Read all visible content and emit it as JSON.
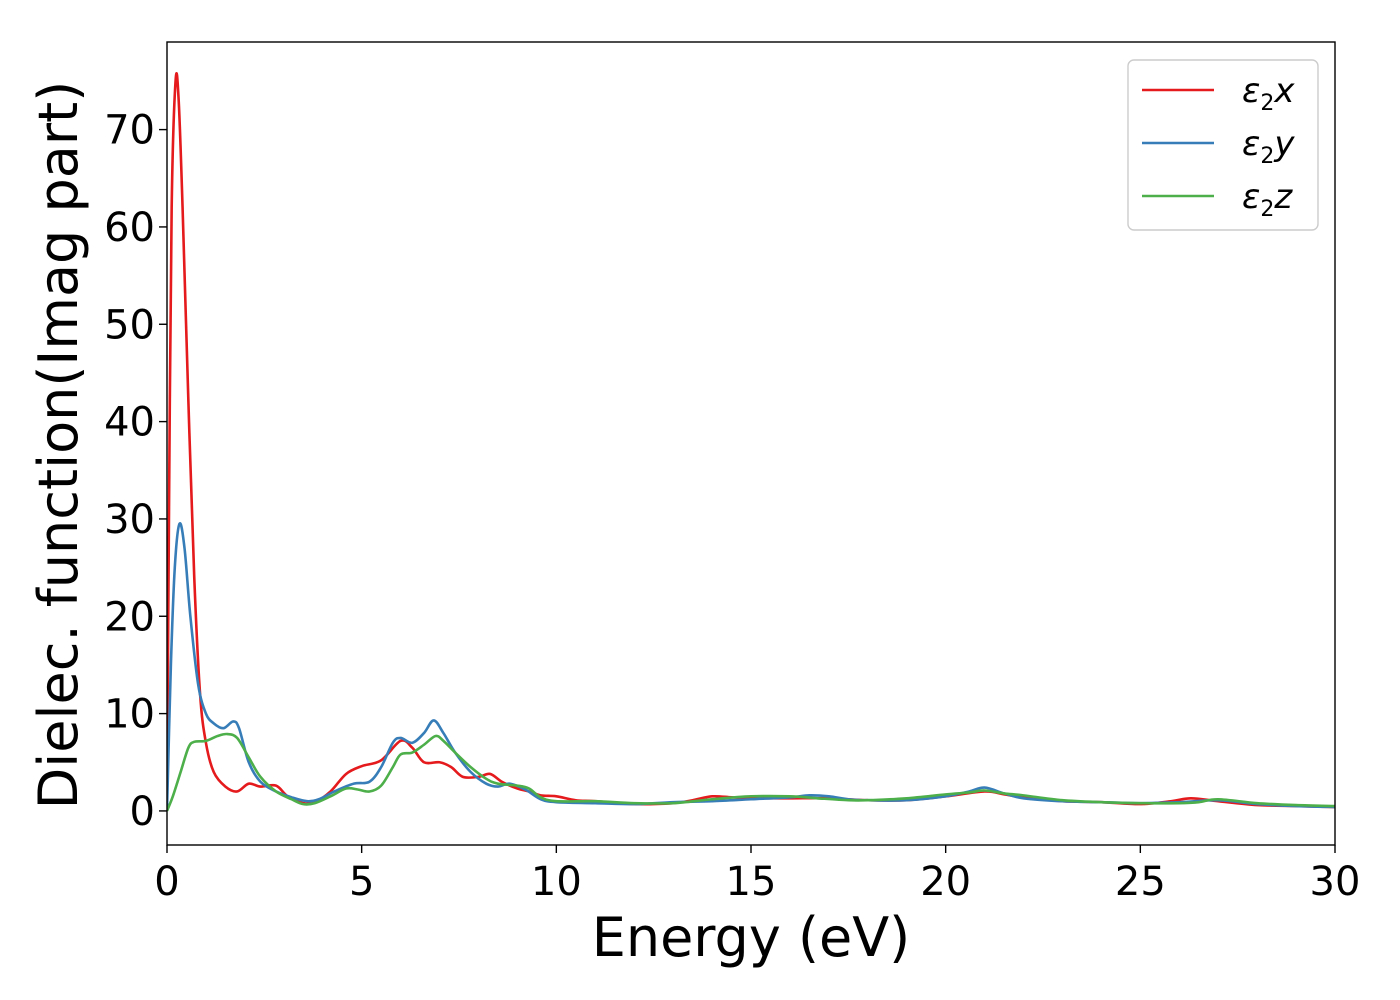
{
  "chart_data": {
    "type": "line",
    "xlabel": "Energy (eV)",
    "ylabel": "Dielec. function(Imag part)",
    "xlim": [
      0,
      30
    ],
    "ylim": [
      -3.5,
      79
    ],
    "xticks": [
      0,
      5,
      10,
      15,
      20,
      25,
      30
    ],
    "yticks": [
      0,
      10,
      20,
      30,
      40,
      50,
      60,
      70
    ],
    "grid": false,
    "legend_position": "top-right",
    "series": [
      {
        "name": "ε2x",
        "legend_symbol": "ε",
        "legend_sub": "2",
        "legend_var": "x",
        "color": "#e41a1c",
        "points": [
          [
            0,
            0
          ],
          [
            0.05,
            30
          ],
          [
            0.12,
            62
          ],
          [
            0.22,
            75
          ],
          [
            0.3,
            73
          ],
          [
            0.4,
            62
          ],
          [
            0.55,
            42
          ],
          [
            0.7,
            24
          ],
          [
            0.85,
            12
          ],
          [
            1.0,
            7
          ],
          [
            1.2,
            4
          ],
          [
            1.5,
            2.5
          ],
          [
            1.8,
            2.0
          ],
          [
            2.1,
            2.8
          ],
          [
            2.4,
            2.5
          ],
          [
            2.8,
            2.6
          ],
          [
            3.1,
            1.5
          ],
          [
            3.5,
            0.8
          ],
          [
            3.8,
            0.9
          ],
          [
            4.2,
            2.0
          ],
          [
            4.6,
            3.8
          ],
          [
            5.0,
            4.6
          ],
          [
            5.5,
            5.2
          ],
          [
            6.0,
            7.2
          ],
          [
            6.3,
            6.5
          ],
          [
            6.6,
            5.0
          ],
          [
            7.0,
            5.0
          ],
          [
            7.3,
            4.5
          ],
          [
            7.6,
            3.5
          ],
          [
            8.0,
            3.5
          ],
          [
            8.3,
            3.8
          ],
          [
            8.6,
            3.0
          ],
          [
            9.0,
            2.3
          ],
          [
            9.3,
            2.0
          ],
          [
            9.6,
            1.6
          ],
          [
            10.0,
            1.5
          ],
          [
            10.5,
            1.1
          ],
          [
            11.0,
            1.0
          ],
          [
            12.0,
            0.7
          ],
          [
            13.0,
            0.8
          ],
          [
            13.5,
            1.1
          ],
          [
            14.0,
            1.5
          ],
          [
            14.5,
            1.4
          ],
          [
            15.0,
            1.3
          ],
          [
            16.0,
            1.3
          ],
          [
            17.0,
            1.3
          ],
          [
            18.0,
            1.1
          ],
          [
            19.0,
            1.1
          ],
          [
            20.0,
            1.5
          ],
          [
            21.0,
            2.0
          ],
          [
            21.5,
            1.7
          ],
          [
            22.0,
            1.4
          ],
          [
            23.0,
            1.0
          ],
          [
            24.0,
            0.9
          ],
          [
            25.0,
            0.7
          ],
          [
            25.8,
            1.0
          ],
          [
            26.3,
            1.3
          ],
          [
            27.0,
            1.0
          ],
          [
            28.0,
            0.6
          ],
          [
            29.0,
            0.5
          ],
          [
            30.0,
            0.4
          ]
        ]
      },
      {
        "name": "ε2y",
        "legend_symbol": "ε",
        "legend_sub": "2",
        "legend_var": "y",
        "color": "#377eb8",
        "points": [
          [
            0,
            0
          ],
          [
            0.1,
            15
          ],
          [
            0.2,
            25
          ],
          [
            0.32,
            29.5
          ],
          [
            0.45,
            27
          ],
          [
            0.6,
            20
          ],
          [
            0.8,
            13
          ],
          [
            1.0,
            10
          ],
          [
            1.2,
            9
          ],
          [
            1.45,
            8.5
          ],
          [
            1.7,
            9.2
          ],
          [
            1.85,
            8.5
          ],
          [
            2.1,
            5
          ],
          [
            2.4,
            3
          ],
          [
            2.8,
            2.0
          ],
          [
            3.2,
            1.4
          ],
          [
            3.6,
            1.0
          ],
          [
            3.9,
            1.2
          ],
          [
            4.3,
            2.0
          ],
          [
            4.8,
            2.8
          ],
          [
            5.2,
            3.0
          ],
          [
            5.5,
            4.5
          ],
          [
            5.8,
            7.0
          ],
          [
            6.0,
            7.5
          ],
          [
            6.3,
            7.0
          ],
          [
            6.6,
            8.0
          ],
          [
            6.85,
            9.3
          ],
          [
            7.1,
            8.0
          ],
          [
            7.4,
            6.0
          ],
          [
            7.8,
            4.0
          ],
          [
            8.2,
            2.8
          ],
          [
            8.5,
            2.5
          ],
          [
            8.8,
            2.8
          ],
          [
            9.2,
            2.2
          ],
          [
            9.6,
            1.2
          ],
          [
            10.0,
            0.9
          ],
          [
            11.0,
            0.8
          ],
          [
            12.0,
            0.7
          ],
          [
            13.0,
            0.9
          ],
          [
            14.0,
            1.0
          ],
          [
            15.0,
            1.2
          ],
          [
            16.0,
            1.4
          ],
          [
            16.5,
            1.6
          ],
          [
            17.0,
            1.5
          ],
          [
            17.5,
            1.2
          ],
          [
            18.0,
            1.1
          ],
          [
            19.0,
            1.1
          ],
          [
            20.0,
            1.5
          ],
          [
            20.6,
            2.0
          ],
          [
            21.0,
            2.4
          ],
          [
            21.5,
            1.8
          ],
          [
            22.0,
            1.3
          ],
          [
            23.0,
            1.0
          ],
          [
            24.0,
            0.9
          ],
          [
            25.0,
            0.8
          ],
          [
            26.0,
            0.9
          ],
          [
            27.0,
            1.1
          ],
          [
            28.0,
            0.7
          ],
          [
            29.0,
            0.5
          ],
          [
            30.0,
            0.4
          ]
        ]
      },
      {
        "name": "ε2z",
        "legend_symbol": "ε",
        "legend_sub": "2",
        "legend_var": "z",
        "color": "#4daf4a",
        "points": [
          [
            0,
            0
          ],
          [
            0.15,
            1.5
          ],
          [
            0.35,
            4
          ],
          [
            0.55,
            6.5
          ],
          [
            0.7,
            7.1
          ],
          [
            1.0,
            7.2
          ],
          [
            1.3,
            7.7
          ],
          [
            1.55,
            7.9
          ],
          [
            1.8,
            7.5
          ],
          [
            2.1,
            5.5
          ],
          [
            2.4,
            3.5
          ],
          [
            2.8,
            2.0
          ],
          [
            3.2,
            1.2
          ],
          [
            3.5,
            0.7
          ],
          [
            3.8,
            0.8
          ],
          [
            4.2,
            1.5
          ],
          [
            4.6,
            2.3
          ],
          [
            4.9,
            2.2
          ],
          [
            5.2,
            2.0
          ],
          [
            5.5,
            2.6
          ],
          [
            5.8,
            4.5
          ],
          [
            6.0,
            5.8
          ],
          [
            6.3,
            6.0
          ],
          [
            6.6,
            6.8
          ],
          [
            6.9,
            7.7
          ],
          [
            7.1,
            7.2
          ],
          [
            7.4,
            6.0
          ],
          [
            7.8,
            4.5
          ],
          [
            8.2,
            3.3
          ],
          [
            8.5,
            2.8
          ],
          [
            9.0,
            2.6
          ],
          [
            9.3,
            2.3
          ],
          [
            9.6,
            1.4
          ],
          [
            10.0,
            1.0
          ],
          [
            11.0,
            1.0
          ],
          [
            12.0,
            0.8
          ],
          [
            13.0,
            0.8
          ],
          [
            14.0,
            1.2
          ],
          [
            15.0,
            1.5
          ],
          [
            16.0,
            1.5
          ],
          [
            16.7,
            1.3
          ],
          [
            17.5,
            1.1
          ],
          [
            18.0,
            1.1
          ],
          [
            19.0,
            1.3
          ],
          [
            20.0,
            1.7
          ],
          [
            20.6,
            1.9
          ],
          [
            21.0,
            2.1
          ],
          [
            21.5,
            1.8
          ],
          [
            22.0,
            1.6
          ],
          [
            23.0,
            1.1
          ],
          [
            24.0,
            0.9
          ],
          [
            25.0,
            0.8
          ],
          [
            26.0,
            0.8
          ],
          [
            26.5,
            0.9
          ],
          [
            27.0,
            1.2
          ],
          [
            28.0,
            0.8
          ],
          [
            29.0,
            0.6
          ],
          [
            30.0,
            0.5
          ]
        ]
      }
    ]
  }
}
